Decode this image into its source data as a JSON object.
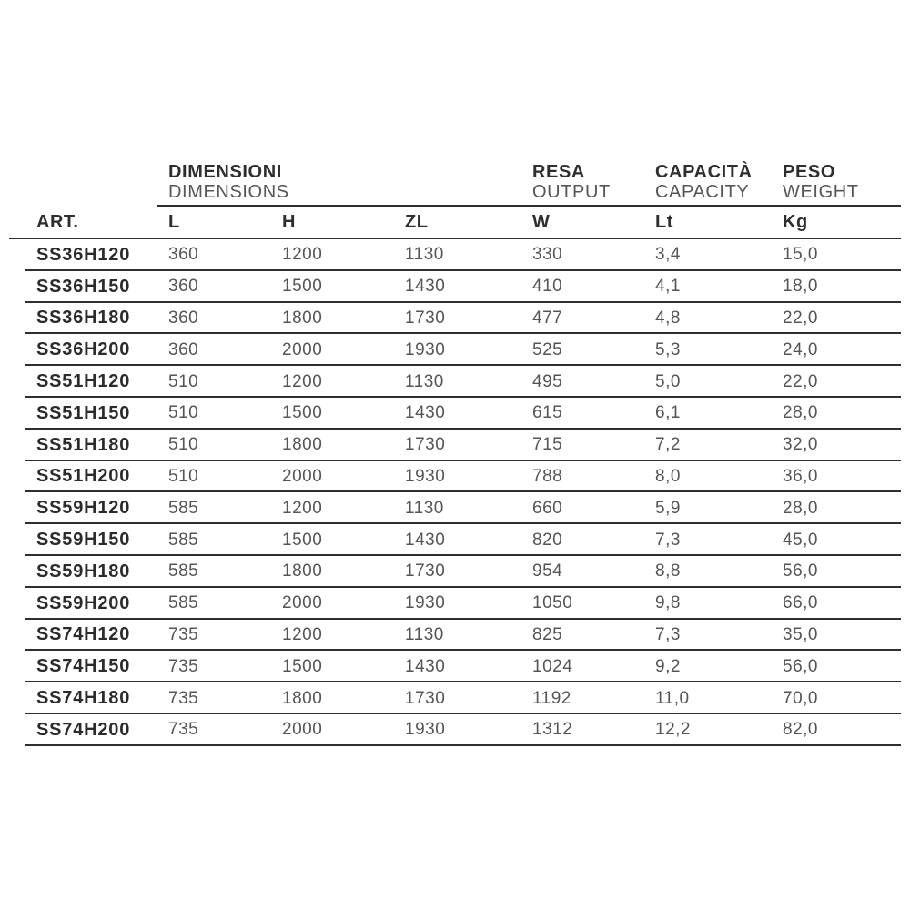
{
  "table": {
    "groups": [
      {
        "title": "DIMENSIONI",
        "subtitle": "DIMENSIONS"
      },
      {
        "title": "RESA",
        "subtitle": "OUTPUT"
      },
      {
        "title": "CAPACITÀ",
        "subtitle": "CAPACITY"
      },
      {
        "title": "PESO",
        "subtitle": "WEIGHT"
      }
    ]
  },
  "chart_data": {
    "type": "table",
    "columns": [
      "ART.",
      "L",
      "H",
      "ZL",
      "W",
      "Lt",
      "Kg"
    ],
    "rows": [
      [
        "SS36H120",
        "360",
        "1200",
        "1130",
        "330",
        "3,4",
        "15,0"
      ],
      [
        "SS36H150",
        "360",
        "1500",
        "1430",
        "410",
        "4,1",
        "18,0"
      ],
      [
        "SS36H180",
        "360",
        "1800",
        "1730",
        "477",
        "4,8",
        "22,0"
      ],
      [
        "SS36H200",
        "360",
        "2000",
        "1930",
        "525",
        "5,3",
        "24,0"
      ],
      [
        "SS51H120",
        "510",
        "1200",
        "1130",
        "495",
        "5,0",
        "22,0"
      ],
      [
        "SS51H150",
        "510",
        "1500",
        "1430",
        "615",
        "6,1",
        "28,0"
      ],
      [
        "SS51H180",
        "510",
        "1800",
        "1730",
        "715",
        "7,2",
        "32,0"
      ],
      [
        "SS51H200",
        "510",
        "2000",
        "1930",
        "788",
        "8,0",
        "36,0"
      ],
      [
        "SS59H120",
        "585",
        "1200",
        "1130",
        "660",
        "5,9",
        "28,0"
      ],
      [
        "SS59H150",
        "585",
        "1500",
        "1430",
        "820",
        "7,3",
        "45,0"
      ],
      [
        "SS59H180",
        "585",
        "1800",
        "1730",
        "954",
        "8,8",
        "56,0"
      ],
      [
        "SS59H200",
        "585",
        "2000",
        "1930",
        "1050",
        "9,8",
        "66,0"
      ],
      [
        "SS74H120",
        "735",
        "1200",
        "1130",
        "825",
        "7,3",
        "35,0"
      ],
      [
        "SS74H150",
        "735",
        "1500",
        "1430",
        "1024",
        "9,2",
        "56,0"
      ],
      [
        "SS74H180",
        "735",
        "1800",
        "1730",
        "1192",
        "11,0",
        "70,0"
      ],
      [
        "SS74H200",
        "735",
        "2000",
        "1930",
        "1312",
        "12,2",
        "82,0"
      ]
    ]
  },
  "colors": {
    "text_dark": "#2e2e2e",
    "text_light": "#555555",
    "line": "#2f2f2f",
    "background": "#ffffff"
  }
}
